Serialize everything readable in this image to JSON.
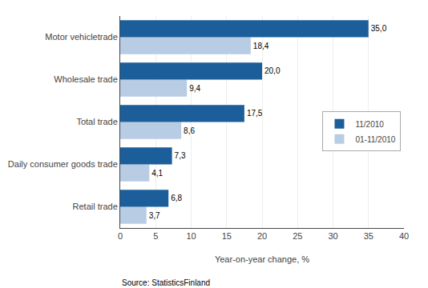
{
  "chart_data": {
    "type": "bar",
    "orientation": "horizontal",
    "x_label": "Year-on-year change, %",
    "categories": [
      "Retail trade",
      "Daily consumer goods trade",
      "Total trade",
      "Wholesale trade",
      "Motor vehicletrade"
    ],
    "series": [
      {
        "name": "11/2010",
        "color": "#1b5e99",
        "values": [
          6.8,
          7.3,
          17.5,
          20.0,
          35.0
        ],
        "value_labels": [
          "6,8",
          "7,3",
          "17,5",
          "20,0",
          "35,0"
        ]
      },
      {
        "name": "01-11/2010",
        "color": "#b8cce4",
        "values": [
          3.7,
          4.1,
          8.6,
          9.4,
          18.4
        ],
        "value_labels": [
          "3,7",
          "4,1",
          "8,6",
          "9,4",
          "18,4"
        ]
      }
    ],
    "xlim": [
      0,
      40
    ],
    "xticks": [
      0,
      5,
      10,
      15,
      20,
      25,
      30,
      35,
      40
    ],
    "grid": true,
    "legend": "right",
    "data_labels": true,
    "annotations": [
      {
        "text": "Source: StatisticsFinland"
      }
    ]
  }
}
